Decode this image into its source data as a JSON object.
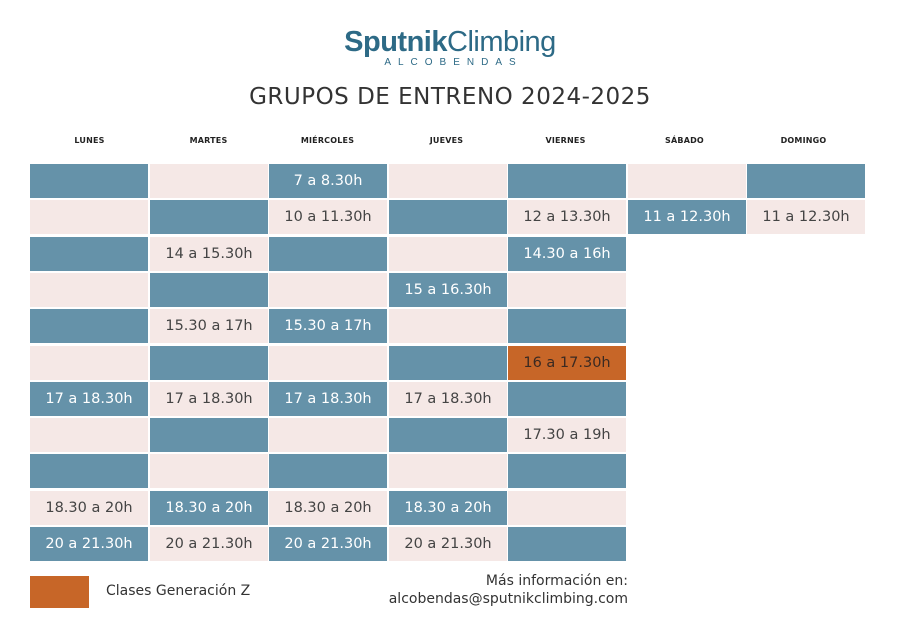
{
  "header": {
    "logo_bold": "Sputnik",
    "logo_light": "Climbing",
    "logo_sub": "ALCOBENDAS",
    "title": "GRUPOS DE ENTRENO 2024-2025"
  },
  "days": [
    "LUNES",
    "MARTES",
    "MIÉRCOLES",
    "JUEVES",
    "VIERNES",
    "SÁBADO",
    "DOMINGO"
  ],
  "colors": {
    "blue": "#6592a9",
    "pink": "#f5e8e6",
    "orange": "#c76628",
    "brand": "#2d6a86"
  },
  "schedule": [
    [
      "B:",
      "P:",
      "B:7 a 8.30h",
      "P:",
      "B:",
      "P:",
      "B:"
    ],
    [
      "P:",
      "B:",
      "P:10 a 11.30h",
      "B:",
      "P:12 a 13.30h",
      "B:11 a 12.30h",
      "P:11 a 12.30h"
    ],
    [
      "B:",
      "P:14 a 15.30h",
      "B:",
      "P:",
      "B:14.30 a 16h",
      "",
      ""
    ],
    [
      "P:",
      "B:",
      "P:",
      "B:15 a 16.30h",
      "P:",
      "",
      ""
    ],
    [
      "B:",
      "P:15.30 a 17h",
      "B:15.30 a 17h",
      "P:",
      "B:",
      "",
      ""
    ],
    [
      "P:",
      "B:",
      "P:",
      "B:",
      "O:16 a 17.30h",
      "",
      ""
    ],
    [
      "B:17 a 18.30h",
      "P:17 a 18.30h",
      "B:17 a 18.30h",
      "P:17 a 18.30h",
      "B:",
      "",
      ""
    ],
    [
      "P:",
      "B:",
      "P:",
      "B:",
      "P:17.30 a 19h",
      "",
      ""
    ],
    [
      "B:",
      "P:",
      "B:",
      "P:",
      "B:",
      "",
      ""
    ],
    [
      "P:18.30 a 20h",
      "B:18.30 a 20h",
      "P:18.30 a 20h",
      "B:18.30 a 20h",
      "P:",
      "",
      ""
    ],
    [
      "B:20 a 21.30h",
      "P:20 a 21.30h",
      "B:20 a 21.30h",
      "P:20 a 21.30h",
      "B:",
      "",
      ""
    ]
  ],
  "legend": {
    "label": "Clases Generación Z"
  },
  "info": {
    "line1": "Más información en:",
    "line2": "alcobendas@sputnikclimbing.com"
  }
}
